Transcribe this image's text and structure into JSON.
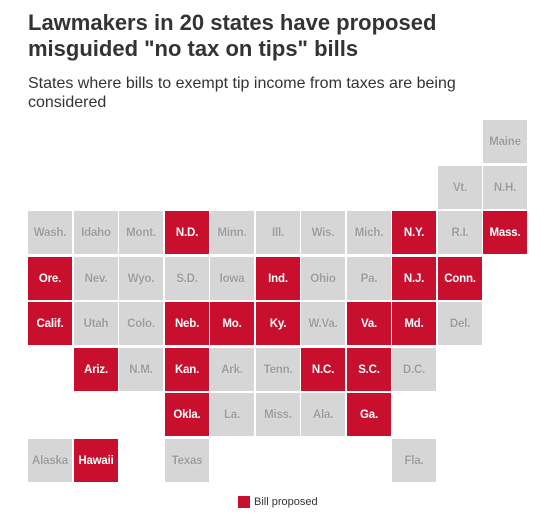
{
  "title": "Lawmakers in 20 states have proposed misguided \"no tax on tips\" bills",
  "subtitle": "States where bills to exempt tip income from taxes are being considered",
  "colors": {
    "bill": "#c8102e",
    "none": "#d6d6d6"
  },
  "legend": {
    "label": "Bill proposed"
  },
  "states": [
    {
      "label": "Maine",
      "row": 0,
      "col": 10,
      "bill": false
    },
    {
      "label": "Vt.",
      "row": 1,
      "col": 9,
      "bill": false
    },
    {
      "label": "N.H.",
      "row": 1,
      "col": 10,
      "bill": false
    },
    {
      "label": "Wash.",
      "row": 2,
      "col": 0,
      "bill": false
    },
    {
      "label": "Idaho",
      "row": 2,
      "col": 1,
      "bill": false
    },
    {
      "label": "Mont.",
      "row": 2,
      "col": 2,
      "bill": false
    },
    {
      "label": "N.D.",
      "row": 2,
      "col": 3,
      "bill": true
    },
    {
      "label": "Minn.",
      "row": 2,
      "col": 4,
      "bill": false
    },
    {
      "label": "Ill.",
      "row": 2,
      "col": 5,
      "bill": false
    },
    {
      "label": "Wis.",
      "row": 2,
      "col": 6,
      "bill": false
    },
    {
      "label": "Mich.",
      "row": 2,
      "col": 7,
      "bill": false
    },
    {
      "label": "N.Y.",
      "row": 2,
      "col": 8,
      "bill": true
    },
    {
      "label": "R.I.",
      "row": 2,
      "col": 9,
      "bill": false
    },
    {
      "label": "Mass.",
      "row": 2,
      "col": 10,
      "bill": true
    },
    {
      "label": "Ore.",
      "row": 3,
      "col": 0,
      "bill": true
    },
    {
      "label": "Nev.",
      "row": 3,
      "col": 1,
      "bill": false
    },
    {
      "label": "Wyo.",
      "row": 3,
      "col": 2,
      "bill": false
    },
    {
      "label": "S.D.",
      "row": 3,
      "col": 3,
      "bill": false
    },
    {
      "label": "Iowa",
      "row": 3,
      "col": 4,
      "bill": false
    },
    {
      "label": "Ind.",
      "row": 3,
      "col": 5,
      "bill": true
    },
    {
      "label": "Ohio",
      "row": 3,
      "col": 6,
      "bill": false
    },
    {
      "label": "Pa.",
      "row": 3,
      "col": 7,
      "bill": false
    },
    {
      "label": "N.J.",
      "row": 3,
      "col": 8,
      "bill": true
    },
    {
      "label": "Conn.",
      "row": 3,
      "col": 9,
      "bill": true
    },
    {
      "label": "Calif.",
      "row": 4,
      "col": 0,
      "bill": true
    },
    {
      "label": "Utah",
      "row": 4,
      "col": 1,
      "bill": false
    },
    {
      "label": "Colo.",
      "row": 4,
      "col": 2,
      "bill": false
    },
    {
      "label": "Neb.",
      "row": 4,
      "col": 3,
      "bill": true
    },
    {
      "label": "Mo.",
      "row": 4,
      "col": 4,
      "bill": true
    },
    {
      "label": "Ky.",
      "row": 4,
      "col": 5,
      "bill": true
    },
    {
      "label": "W.Va.",
      "row": 4,
      "col": 6,
      "bill": false
    },
    {
      "label": "Va.",
      "row": 4,
      "col": 7,
      "bill": true
    },
    {
      "label": "Md.",
      "row": 4,
      "col": 8,
      "bill": true
    },
    {
      "label": "Del.",
      "row": 4,
      "col": 9,
      "bill": false
    },
    {
      "label": "Ariz.",
      "row": 5,
      "col": 1,
      "bill": true
    },
    {
      "label": "N.M.",
      "row": 5,
      "col": 2,
      "bill": false
    },
    {
      "label": "Kan.",
      "row": 5,
      "col": 3,
      "bill": true
    },
    {
      "label": "Ark.",
      "row": 5,
      "col": 4,
      "bill": false
    },
    {
      "label": "Tenn.",
      "row": 5,
      "col": 5,
      "bill": false
    },
    {
      "label": "N.C.",
      "row": 5,
      "col": 6,
      "bill": true
    },
    {
      "label": "S.C.",
      "row": 5,
      "col": 7,
      "bill": true
    },
    {
      "label": "D.C.",
      "row": 5,
      "col": 8,
      "bill": false
    },
    {
      "label": "Okla.",
      "row": 6,
      "col": 3,
      "bill": true
    },
    {
      "label": "La.",
      "row": 6,
      "col": 4,
      "bill": false
    },
    {
      "label": "Miss.",
      "row": 6,
      "col": 5,
      "bill": false
    },
    {
      "label": "Ala.",
      "row": 6,
      "col": 6,
      "bill": false
    },
    {
      "label": "Ga.",
      "row": 6,
      "col": 7,
      "bill": true
    },
    {
      "label": "Alaska",
      "row": 7,
      "col": 0,
      "bill": false
    },
    {
      "label": "Hawaii",
      "row": 7,
      "col": 1,
      "bill": true
    },
    {
      "label": "Texas",
      "row": 7,
      "col": 3,
      "bill": false
    },
    {
      "label": "Fla.",
      "row": 7,
      "col": 8,
      "bill": false
    }
  ]
}
